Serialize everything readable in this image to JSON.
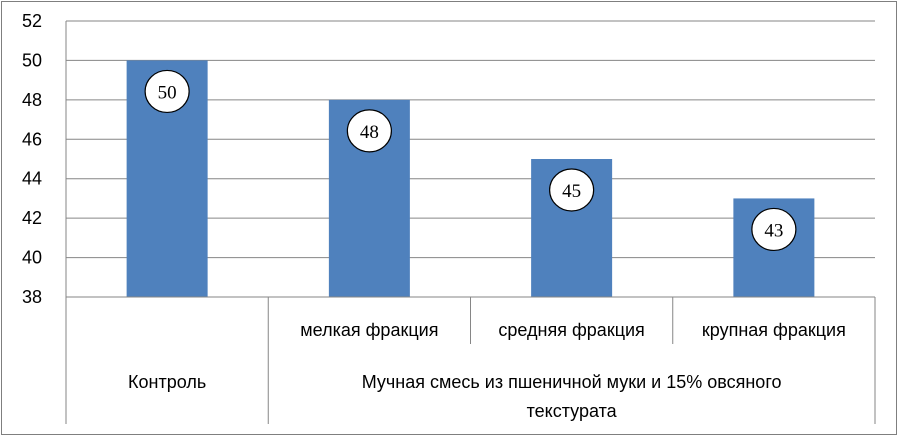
{
  "chart_data": {
    "type": "bar",
    "title": "",
    "xlabel": "",
    "ylabel": "",
    "categories": [
      "Контроль",
      "мелкая фракция",
      "средняя фракция",
      "крупная фракция"
    ],
    "group_labels": [
      {
        "label": "Контроль",
        "span": [
          0,
          0
        ]
      },
      {
        "label": "Мучная смесь из пшеничной муки и 15% овсяного текстурата",
        "span": [
          1,
          3
        ]
      }
    ],
    "group_label_lines": [
      "Мучная смесь из пшеничной муки и 15% овсяного",
      "текстурата"
    ],
    "values": [
      50,
      48,
      45,
      43
    ],
    "data_labels": [
      "50",
      "48",
      "45",
      "43"
    ],
    "ylim": [
      38,
      52
    ],
    "yticks": [
      "38",
      "40",
      "42",
      "44",
      "46",
      "48",
      "50",
      "52"
    ],
    "grid": true,
    "legend": "none",
    "colors": {
      "bar": "#4f81bd",
      "grid": "#868686",
      "axis": "#868686"
    }
  }
}
